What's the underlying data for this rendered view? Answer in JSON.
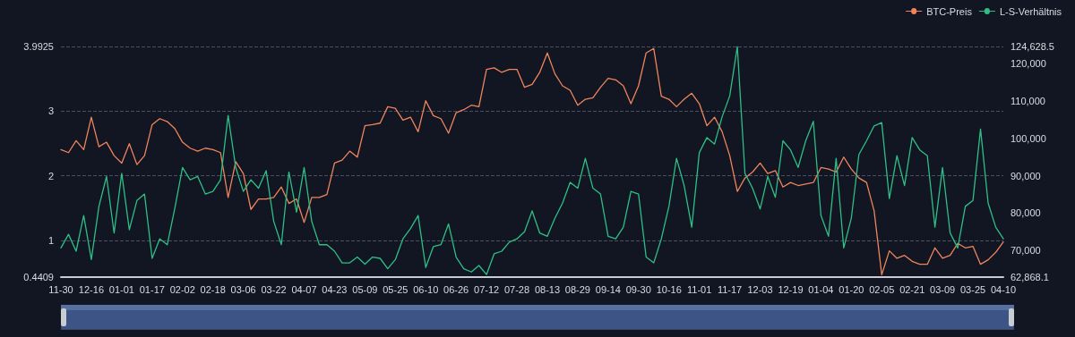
{
  "chart_data": {
    "type": "line",
    "categories": [
      "11-30",
      null,
      null,
      null,
      "12-16",
      null,
      null,
      null,
      "01-01",
      null,
      null,
      null,
      "01-17",
      null,
      null,
      null,
      "02-02",
      null,
      null,
      null,
      "02-18",
      null,
      null,
      null,
      "03-06",
      null,
      null,
      null,
      "03-22",
      null,
      null,
      null,
      "04-07",
      null,
      null,
      null,
      "04-23",
      null,
      null,
      null,
      "05-09",
      null,
      null,
      null,
      "05-25",
      null,
      null,
      null,
      "06-10",
      null,
      null,
      null,
      "06-26",
      null,
      null,
      null,
      "07-12",
      null,
      null,
      null,
      "07-28",
      null,
      null,
      null,
      "08-13",
      null,
      null,
      null,
      "08-29",
      null,
      null,
      null,
      "09-14",
      null,
      null,
      null,
      "09-30",
      null,
      null,
      null,
      "10-16",
      null,
      null,
      null,
      "11-01",
      null,
      null,
      null,
      "11-17",
      null,
      null,
      null,
      "12-03",
      null,
      null,
      null,
      "12-19",
      null,
      null,
      null,
      "01-04",
      null,
      null,
      null,
      "01-20",
      null,
      null,
      null,
      "02-05",
      null,
      null,
      null,
      "02-21",
      null,
      null,
      null,
      "03-09",
      null,
      null,
      null,
      "03-25",
      null,
      null,
      null,
      "04-10"
    ],
    "series": [
      {
        "name": "BTC-Preis",
        "color": "#f0845c",
        "axis": "y2",
        "values": [
          97000,
          96200,
          99400,
          97000,
          105700,
          97800,
          99000,
          95400,
          93400,
          98600,
          93000,
          95400,
          103700,
          105300,
          104500,
          102600,
          99000,
          97400,
          96600,
          97400,
          97000,
          96200,
          84200,
          93800,
          90600,
          81000,
          83800,
          83800,
          84200,
          87000,
          82600,
          83800,
          77500,
          84200,
          84200,
          85000,
          93400,
          94200,
          96600,
          95000,
          103400,
          103700,
          104100,
          108500,
          108100,
          104900,
          105700,
          101800,
          110100,
          106100,
          105300,
          101400,
          106900,
          107700,
          108900,
          108500,
          118500,
          118900,
          117700,
          118500,
          118500,
          113700,
          114500,
          117700,
          122900,
          117300,
          114100,
          112900,
          108900,
          110500,
          110900,
          113700,
          116100,
          115700,
          114100,
          109300,
          114100,
          122900,
          124100,
          111300,
          110500,
          108500,
          110500,
          112100,
          109300,
          103400,
          105700,
          101800,
          95400,
          85800,
          89400,
          91000,
          93400,
          90600,
          91400,
          87000,
          88200,
          87400,
          87800,
          88200,
          92200,
          91800,
          91000,
          95000,
          91800,
          89400,
          88200,
          80600,
          63500,
          69900,
          67900,
          68700,
          67100,
          66300,
          66300,
          70700,
          67900,
          68700,
          71900,
          70700,
          71100,
          66300,
          67500,
          69500,
          72300
        ]
      },
      {
        "name": "L-S-Verhältnis",
        "color": "#2fbf86",
        "values": [
          0.89,
          1.1,
          0.84,
          1.39,
          0.71,
          1.53,
          1.99,
          1.12,
          2.04,
          1.17,
          1.62,
          1.72,
          0.73,
          1.03,
          0.94,
          1.51,
          2.13,
          1.94,
          1.99,
          1.72,
          1.76,
          1.94,
          2.93,
          2.13,
          1.76,
          1.94,
          1.81,
          2.08,
          1.3,
          0.94,
          2.06,
          1.44,
          2.13,
          1.3,
          0.94,
          0.94,
          0.84,
          0.66,
          0.66,
          0.75,
          0.64,
          0.75,
          0.73,
          0.57,
          0.71,
          1.03,
          1.19,
          1.39,
          0.59,
          0.91,
          0.94,
          1.26,
          0.75,
          0.57,
          0.52,
          0.62,
          0.48,
          0.8,
          0.84,
          0.98,
          1.03,
          1.14,
          1.46,
          1.12,
          1.07,
          1.35,
          1.58,
          1.9,
          1.81,
          2.27,
          1.81,
          1.72,
          1.07,
          1.03,
          1.21,
          1.76,
          1.72,
          0.75,
          0.66,
          1.03,
          1.53,
          2.27,
          1.85,
          1.21,
          2.36,
          2.59,
          2.49,
          2.91,
          3.23,
          3.99,
          2.04,
          1.81,
          1.49,
          1.99,
          1.67,
          2.54,
          2.4,
          2.13,
          2.54,
          2.84,
          1.39,
          1.07,
          2.27,
          0.89,
          1.35,
          2.33,
          2.54,
          2.77,
          2.82,
          1.65,
          2.31,
          1.85,
          2.59,
          2.4,
          2.31,
          1.21,
          2.13,
          1.12,
          0.89,
          1.53,
          1.62,
          2.72,
          1.58,
          1.21,
          1.03
        ]
      }
    ],
    "ylim": [
      0.4409,
      3.9925
    ],
    "yticks": [
      0.4409,
      1,
      2,
      3,
      3.9925
    ],
    "y2lim": [
      62868.1,
      124628.5
    ],
    "y2ticks": [
      {
        "value": 62868.1,
        "label": "62,868.1"
      },
      {
        "value": 70000,
        "label": "70,000"
      },
      {
        "value": 80000,
        "label": "80,000"
      },
      {
        "value": 90000,
        "label": "90,000"
      },
      {
        "value": 100000,
        "label": "100,000"
      },
      {
        "value": 110000,
        "label": "110,000"
      },
      {
        "value": 120000,
        "label": "120,000"
      },
      {
        "value": 124628.5,
        "label": "124,628.5"
      }
    ],
    "grid": "y",
    "legend": "top right",
    "marker": "none",
    "line_style": "solid"
  }
}
